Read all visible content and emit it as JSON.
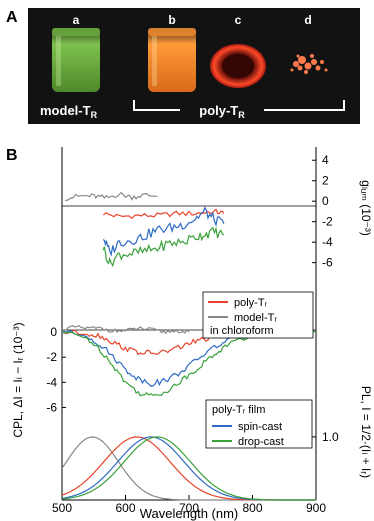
{
  "panel_a": {
    "label": "A",
    "vials": [
      {
        "letter": "a",
        "glow": "#8edc5a"
      },
      {
        "letter": "b",
        "glow": "#ffa040"
      },
      {
        "letter": "c",
        "glow": "#ff4a2a"
      },
      {
        "letter": "d",
        "glow": "#ff7a4a"
      }
    ],
    "caption_model": "model-T",
    "caption_poly": "poly-T",
    "subscript": "R"
  },
  "panel_b": {
    "label": "B",
    "xlabel": "Wavelength (nm)",
    "ylabel_cpl": "CPL, ΔI = Iₗ − Iᵣ (10⁻³)",
    "ylabel_glum": "gₗᵤₘ (10⁻³)",
    "ylabel_pl": "PL, I = 1/2·(Iₗ + Iᵣ)",
    "legend_solution": {
      "items": [
        "poly-Tᵣ",
        "model-Tᵣ"
      ],
      "note": "in chloroform"
    },
    "legend_film": {
      "title": "poly-Tᵣ film",
      "items": [
        "spin-cast",
        "drop-cast"
      ]
    }
  },
  "chart_data": [
    {
      "type": "line",
      "panel": "g_lum",
      "ylabel": "g_lum (10^-3)",
      "ylim": [
        -7.5,
        5
      ],
      "yticks": [
        4,
        2,
        0,
        -2,
        -4,
        -6
      ],
      "series": [
        {
          "name": "poly-TR",
          "color": "#e8432a",
          "x": [
            565,
            590,
            620,
            650,
            680,
            710,
            740,
            755
          ],
          "y": [
            -1.2,
            -1.5,
            -1.4,
            -1.4,
            -1.2,
            -1.2,
            -1.0,
            -1.2
          ]
        },
        {
          "name": "model-TR",
          "color": "#888888",
          "x": [
            505,
            530,
            550,
            570,
            590,
            610,
            630,
            650
          ],
          "y": [
            0.3,
            0.5,
            0.5,
            0.3,
            0.7,
            0.4,
            0.6,
            0.5
          ]
        },
        {
          "color": "#2d6bc4",
          "x": [
            565,
            575,
            590,
            610,
            630,
            650,
            670,
            690,
            710,
            725,
            740,
            755
          ],
          "y": [
            -3.5,
            -5.0,
            -4.0,
            -3.8,
            -3.4,
            -2.8,
            -2.6,
            -2.3,
            -1.7,
            -1.0,
            -1.8,
            -2.2
          ]
        },
        {
          "color": "#3aa23a",
          "x": [
            565,
            575,
            590,
            610,
            630,
            650,
            670,
            690,
            710,
            725,
            740,
            755
          ],
          "y": [
            -4.5,
            -6.1,
            -5.2,
            -5.1,
            -4.9,
            -4.6,
            -4.1,
            -4.0,
            -3.5,
            -3.2,
            -3.0,
            -3.3
          ]
        }
      ]
    },
    {
      "type": "line",
      "panel": "CPL",
      "xlabel": "Wavelength (nm)",
      "ylabel": "CPL, ΔI = IL − IR (10^-3)",
      "xlim": [
        500,
        900
      ],
      "xticks": [
        500,
        600,
        700,
        800,
        900
      ],
      "ylim": [
        -7,
        0.8
      ],
      "yticks": [
        0,
        -2,
        -4,
        -6
      ],
      "series": [
        {
          "name": "model-TR",
          "color": "#888888",
          "x": [
            500,
            520,
            540,
            560,
            580,
            600,
            620,
            640,
            660,
            680,
            700
          ],
          "y": [
            0.2,
            0.4,
            0.3,
            0.3,
            0.1,
            0.1,
            0.3,
            0.2,
            0.0,
            0.1,
            0.0
          ]
        },
        {
          "name": "poly-TR",
          "color": "#e8432a",
          "x": [
            500,
            540,
            560,
            580,
            600,
            620,
            640,
            660,
            680,
            700,
            720,
            740,
            760,
            800,
            850,
            900
          ],
          "y": [
            0,
            -0.1,
            -0.3,
            -0.8,
            -1.3,
            -1.6,
            -1.7,
            -1.6,
            -1.3,
            -0.9,
            -0.6,
            -0.4,
            -0.2,
            -0.1,
            0,
            0
          ]
        },
        {
          "name": "spin-cast",
          "color": "#2d6bc4",
          "x": [
            500,
            540,
            560,
            580,
            600,
            620,
            640,
            660,
            680,
            700,
            720,
            740,
            760,
            800,
            850,
            900
          ],
          "y": [
            0,
            -0.3,
            -1.0,
            -1.9,
            -3.0,
            -3.7,
            -4.1,
            -3.9,
            -3.4,
            -2.7,
            -1.9,
            -1.2,
            -0.7,
            -0.2,
            0,
            0
          ]
        },
        {
          "name": "drop-cast",
          "color": "#3aa23a",
          "x": [
            500,
            540,
            560,
            580,
            600,
            620,
            640,
            660,
            680,
            700,
            720,
            740,
            760,
            800,
            850,
            900
          ],
          "y": [
            0,
            -0.5,
            -1.4,
            -2.6,
            -4.0,
            -4.8,
            -5.1,
            -4.8,
            -4.2,
            -3.4,
            -2.6,
            -1.8,
            -1.0,
            -0.3,
            0,
            0
          ]
        }
      ]
    },
    {
      "type": "line",
      "panel": "PL",
      "ylabel": "PL, I = 1/2(IL + IR)",
      "ylim": [
        0,
        1.3
      ],
      "yticks": [
        1.0
      ],
      "series": [
        {
          "name": "model-TR",
          "color": "#888888",
          "peak": 548
        },
        {
          "name": "poly-TR",
          "color": "#e8432a",
          "peak": 618
        },
        {
          "name": "spin-cast",
          "color": "#2d6bc4",
          "peak": 640
        },
        {
          "name": "drop-cast",
          "color": "#3aa23a",
          "peak": 650
        }
      ]
    }
  ]
}
